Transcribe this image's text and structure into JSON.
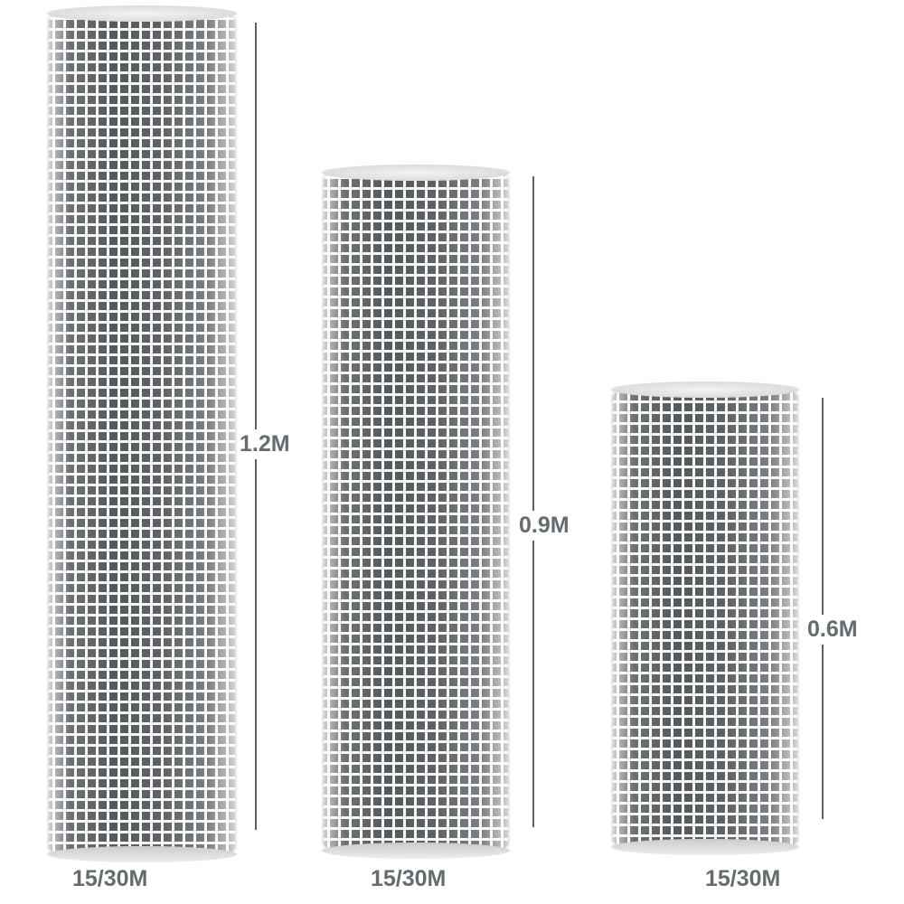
{
  "rolls": [
    {
      "height_label": "1.2M",
      "length_label": "15/30M"
    },
    {
      "height_label": "0.9M",
      "length_label": "15/30M"
    },
    {
      "height_label": "0.6M",
      "length_label": "15/30M"
    }
  ],
  "colors": {
    "text": "#646c70",
    "line": "#5a6266",
    "mesh": "#e8e8e8"
  }
}
